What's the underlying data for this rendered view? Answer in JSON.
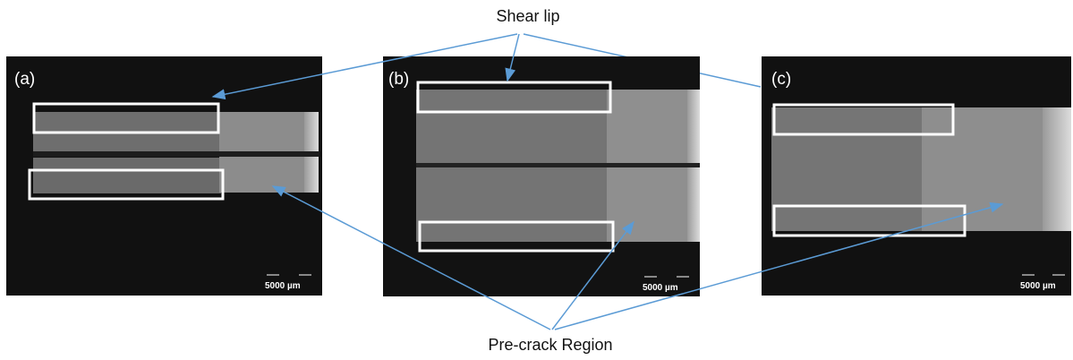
{
  "annotations": {
    "shear_lip": "Shear lip",
    "pre_crack": "Pre-crack Region"
  },
  "panels": [
    {
      "label": "(a)",
      "scale_bar": "5000 µm"
    },
    {
      "label": "(b)",
      "scale_bar": "5000 µm"
    },
    {
      "label": "(c)",
      "scale_bar": "5000 µm"
    }
  ]
}
